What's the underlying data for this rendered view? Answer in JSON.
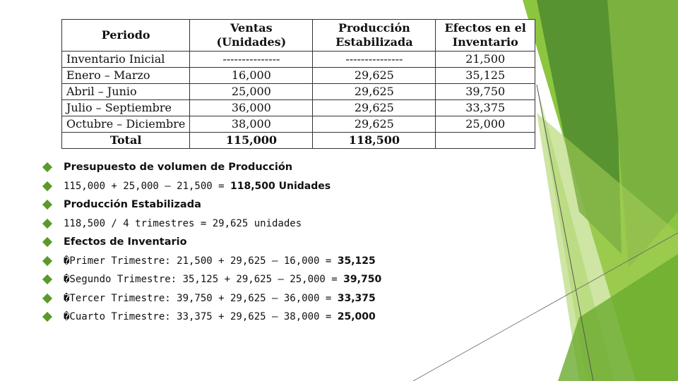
{
  "theme": {
    "accent": "#5a9a2b",
    "green_dark": "#4e8a2e",
    "green_mid": "#7bb23f",
    "green_light": "#a5cf5a"
  },
  "table": {
    "headers": [
      "Periodo",
      "Ventas\n(Unidades)",
      "Producción\nEstabilizada",
      "Efectos en el\nInventario"
    ],
    "rows": [
      [
        "Inventario Inicial",
        "---------------",
        "---------------",
        "21,500"
      ],
      [
        "Enero – Marzo",
        "16,000",
        "29,625",
        "35,125"
      ],
      [
        "Abril – Junio",
        "25,000",
        "29,625",
        "39,750"
      ],
      [
        "Julio – Septiembre",
        "36,000",
        "29,625",
        "33,375"
      ],
      [
        "Octubre – Diciembre",
        "38,000",
        "29,625",
        "25,000"
      ]
    ],
    "total": [
      "Total",
      "115,000",
      "118,500",
      ""
    ]
  },
  "bullets": [
    {
      "type": "heading",
      "text": "Presupuesto de volumen de Producción"
    },
    {
      "type": "formula",
      "text": "115,000 + 25,000 – 21,500 = ",
      "result": "118,500 Unidades"
    },
    {
      "type": "heading",
      "text": "Producción Estabilizada"
    },
    {
      "type": "formula",
      "text": "118,500 / 4 trimestres = 29,625 unidades",
      "result": ""
    },
    {
      "type": "heading",
      "text": "Efectos de Inventario"
    },
    {
      "type": "formula",
      "text": "�Primer Trimestre: 21,500 + 29,625 – 16,000 = ",
      "result": "35,125"
    },
    {
      "type": "formula",
      "text": "�Segundo Trimestre: 35,125 + 29,625 – 25,000 = ",
      "result": "39,750"
    },
    {
      "type": "formula",
      "text": "�Tercer Trimestre: 39,750 + 29,625 – 36,000 = ",
      "result": "33,375"
    },
    {
      "type": "formula",
      "text": "�Cuarto Trimestre: 33,375 + 29,625 – 38,000 = ",
      "result": "25,000"
    }
  ]
}
